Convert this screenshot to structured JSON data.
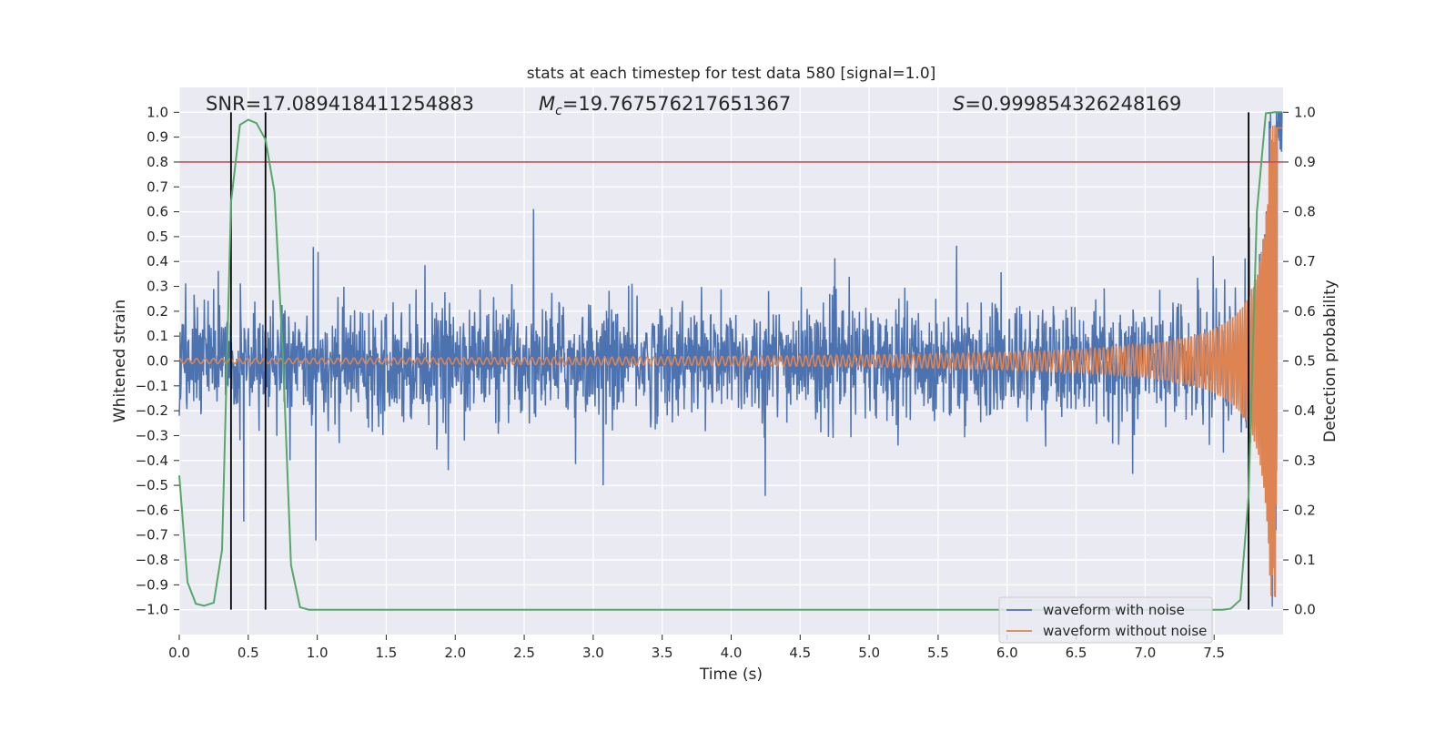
{
  "chart_data": {
    "type": "line",
    "title": "stats at each timestep for test data 580 [signal=1.0]",
    "xlabel": "Time (s)",
    "ylabel": "Whitened strain",
    "y2label": "Detection probability",
    "xlim": [
      0.0,
      8.0
    ],
    "ylim": [
      -1.1,
      1.1
    ],
    "y2lim": [
      -0.05,
      1.05
    ],
    "x_ticks": [
      "0.0",
      "0.5",
      "1.0",
      "1.5",
      "2.0",
      "2.5",
      "3.0",
      "3.5",
      "4.0",
      "4.5",
      "5.0",
      "5.5",
      "6.0",
      "6.5",
      "7.0",
      "7.5"
    ],
    "y_ticks": [
      "1.0",
      "0.9",
      "0.8",
      "0.7",
      "0.6",
      "0.5",
      "0.4",
      "0.3",
      "0.2",
      "0.1",
      "0.0",
      "−0.1",
      "−0.2",
      "−0.3",
      "−0.4",
      "−0.5",
      "−0.6",
      "−0.7",
      "−0.8",
      "−0.9",
      "−1.0"
    ],
    "y2_ticks": [
      "1.0",
      "0.9",
      "0.8",
      "0.7",
      "0.6",
      "0.5",
      "0.4",
      "0.3",
      "0.2",
      "0.1",
      "0.0"
    ],
    "grid": true,
    "legend_position": "bottom-right",
    "annotations": {
      "snr_text": "SNR=17.089418411254883",
      "mc_symbol": "M",
      "mc_subscript": "c",
      "mc_value": "=19.767576217651367",
      "s_symbol": "S",
      "s_value": "=0.999854326248169"
    },
    "threshold_line": {
      "axis": "y2",
      "value": 0.9,
      "color": "#c44e52"
    },
    "vertical_lines": {
      "x": [
        0.375,
        0.625,
        7.75
      ],
      "color": "#000000"
    },
    "series": [
      {
        "name": "waveform with noise",
        "axis": "y",
        "color": "#4c72b0",
        "description_values": "noisy strain, amplitude mostly within ±0.35, occasional spikes to ±0.5, growing toward merger at ~7.95 s reaching ~0.98"
      },
      {
        "name": "waveform without noise",
        "axis": "y",
        "color": "#dd8452",
        "chirp": {
          "start_amplitude": 0.01,
          "end_amplitude": 0.95,
          "t_merge": 7.96
        }
      },
      {
        "name": "detection probability",
        "axis": "y2",
        "color": "#55a868",
        "x": [
          0.0,
          0.06,
          0.12,
          0.18,
          0.25,
          0.31,
          0.375,
          0.44,
          0.5,
          0.56,
          0.625,
          0.69,
          0.75,
          0.81,
          0.875,
          0.94,
          1.0,
          7.5,
          7.56,
          7.62,
          7.69,
          7.75,
          7.81,
          7.875,
          7.94,
          7.99
        ],
        "values": [
          0.27,
          0.055,
          0.012,
          0.008,
          0.014,
          0.12,
          0.82,
          0.975,
          0.985,
          0.978,
          0.945,
          0.84,
          0.52,
          0.09,
          0.005,
          0.0,
          0.0,
          0.0,
          0.0,
          0.002,
          0.02,
          0.23,
          0.8,
          0.998,
          1.0,
          1.0
        ]
      }
    ]
  },
  "legend": {
    "items": [
      {
        "label": "waveform with noise",
        "color": "#4c72b0"
      },
      {
        "label": "waveform without noise",
        "color": "#dd8452"
      }
    ]
  },
  "colors": {
    "plot_background": "#eaeaf2",
    "grid": "#ffffff",
    "figure_background": "#ffffff"
  }
}
